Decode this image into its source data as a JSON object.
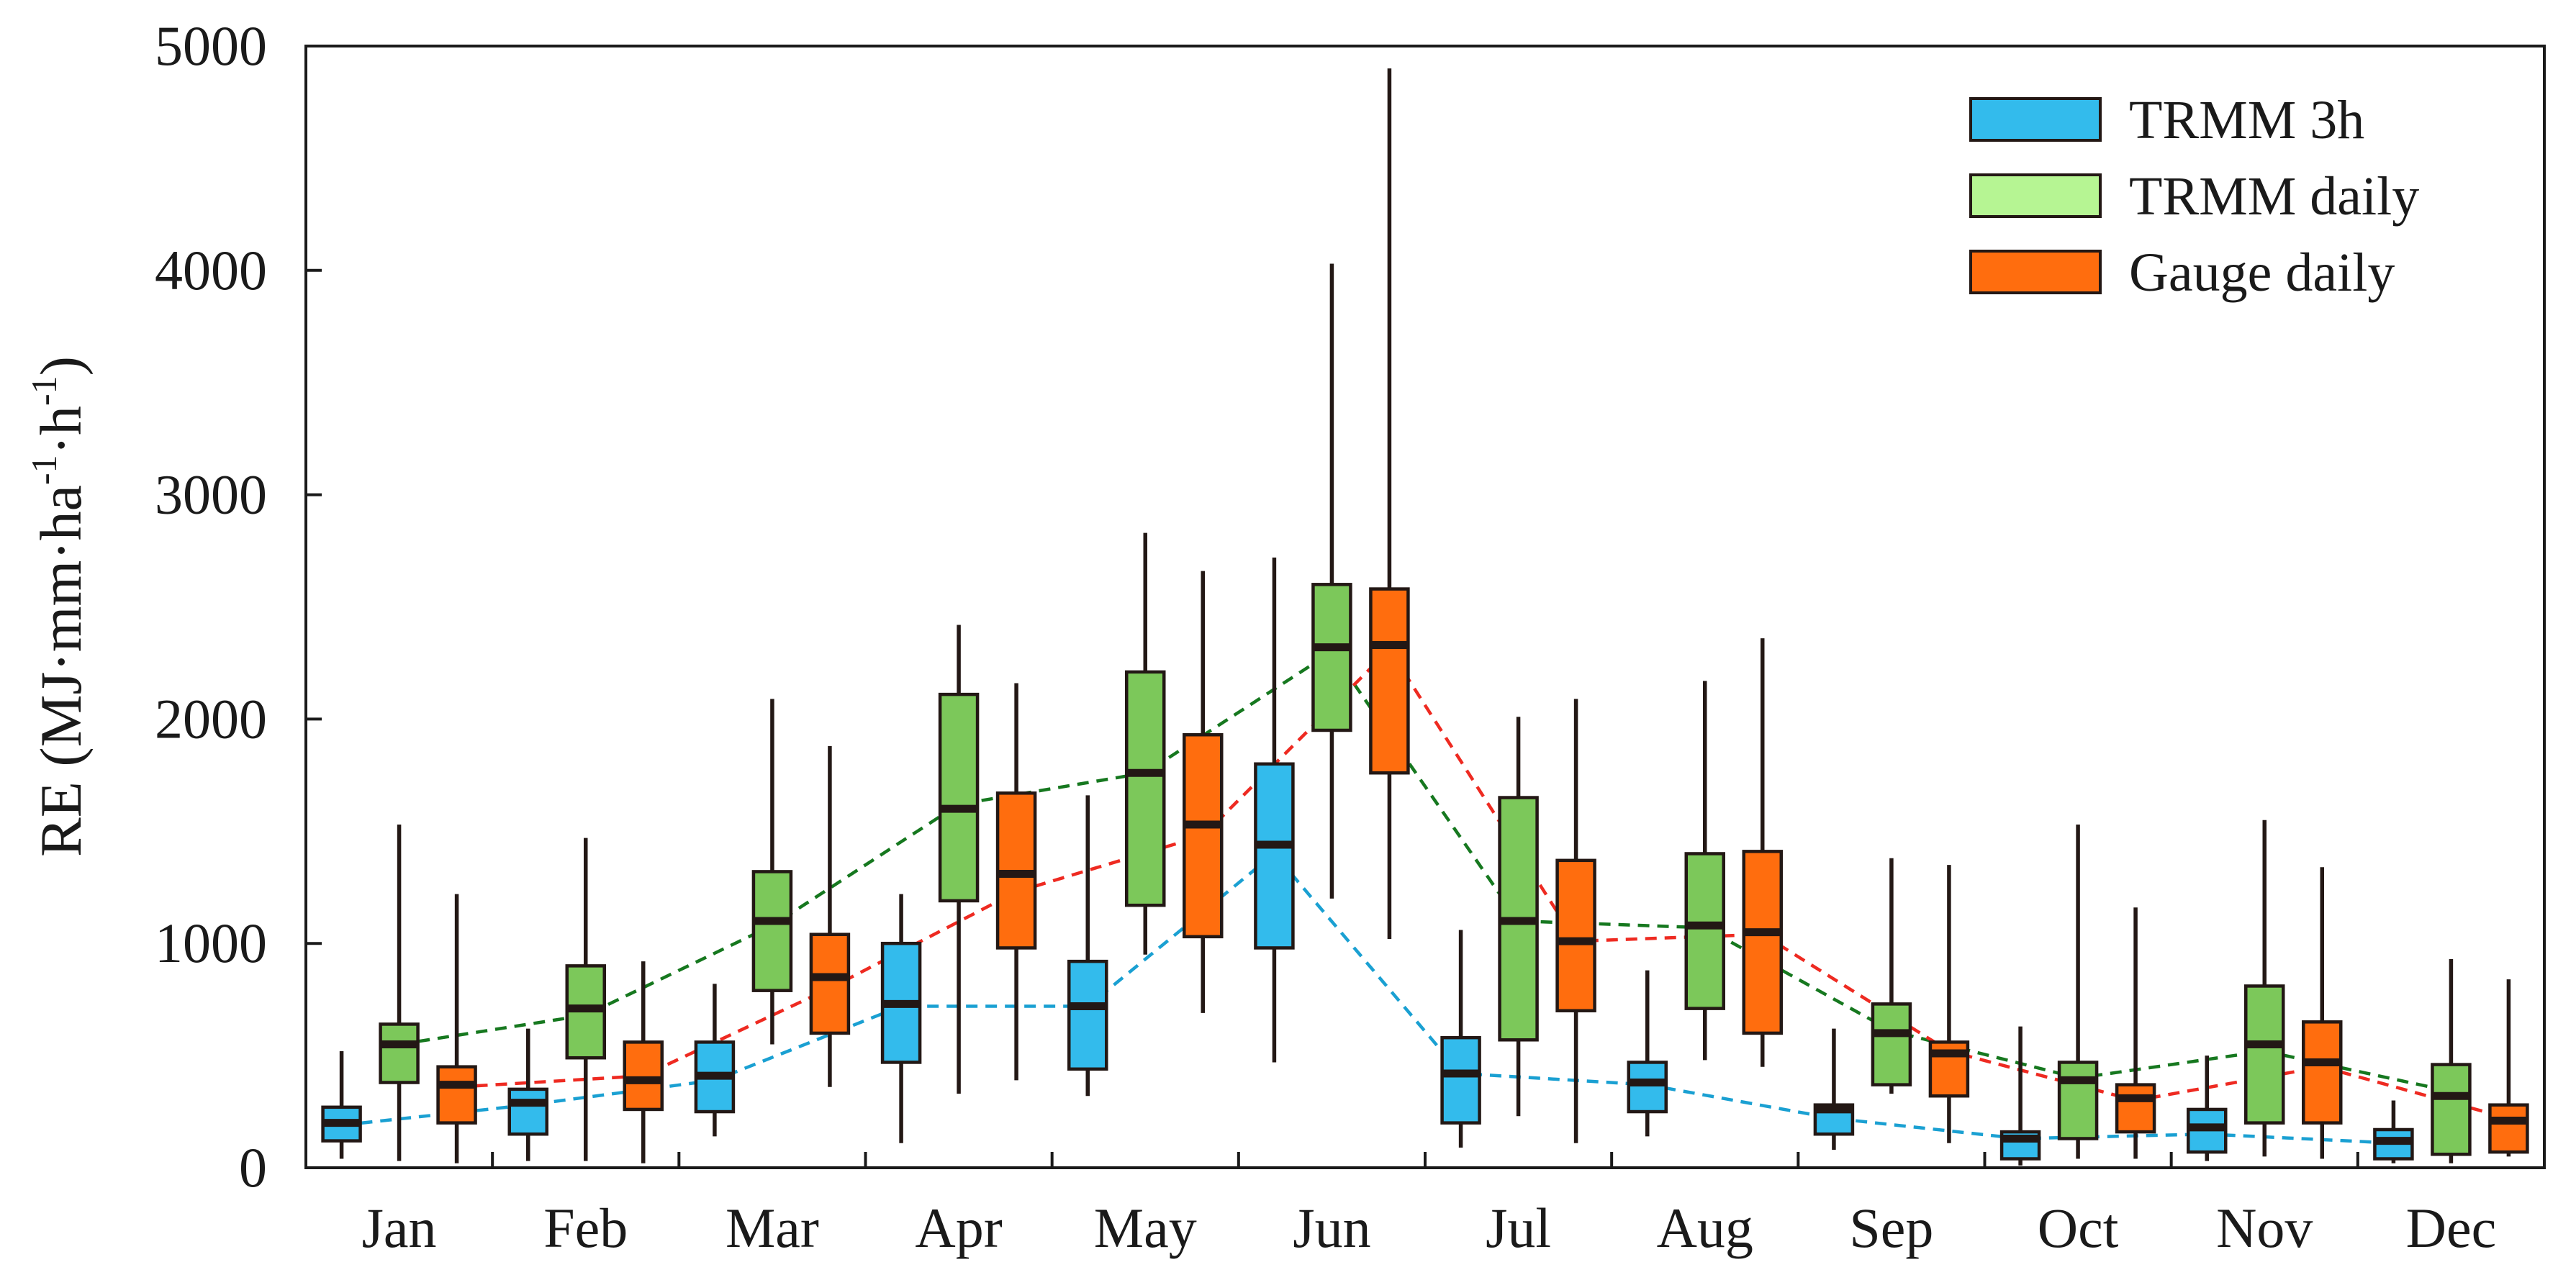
{
  "chart_data": {
    "type": "box",
    "title": "",
    "xlabel": "",
    "ylabel": "RE (MJ·mm·ha",
    "ylabel_sup1": "-1",
    "ylabel_mid": "·h",
    "ylabel_sup2": "-1",
    "ylabel_end": ")",
    "ylim": [
      0,
      5000
    ],
    "yticks": [
      0,
      1000,
      2000,
      3000,
      4000,
      5000
    ],
    "yticklabels": [
      "0",
      "1000",
      "2000",
      "3000",
      "4000",
      "5000"
    ],
    "categories": [
      "Jan",
      "Feb",
      "Mar",
      "Apr",
      "May",
      "Jun",
      "Jul",
      "Aug",
      "Sep",
      "Oct",
      "Nov",
      "Dec"
    ],
    "legend_position": "top-right",
    "series": [
      {
        "name": "TRMM 3h",
        "color": "#33bbec",
        "mean_line_color": "#1aa0d2",
        "boxes": [
          {
            "min": 40,
            "q1": 120,
            "median": 200,
            "q3": 270,
            "max": 520,
            "mean": 190
          },
          {
            "min": 30,
            "q1": 150,
            "median": 290,
            "q3": 350,
            "max": 620,
            "mean": 280
          },
          {
            "min": 140,
            "q1": 250,
            "median": 410,
            "q3": 560,
            "max": 820,
            "mean": 390
          },
          {
            "min": 110,
            "q1": 470,
            "median": 730,
            "q3": 1000,
            "max": 1220,
            "mean": 720
          },
          {
            "min": 320,
            "q1": 440,
            "median": 720,
            "q3": 920,
            "max": 1660,
            "mean": 720
          },
          {
            "min": 470,
            "q1": 980,
            "median": 1440,
            "q3": 1800,
            "max": 2720,
            "mean": 1400
          },
          {
            "min": 90,
            "q1": 200,
            "median": 420,
            "q3": 580,
            "max": 1060,
            "mean": 420
          },
          {
            "min": 140,
            "q1": 250,
            "median": 380,
            "q3": 470,
            "max": 880,
            "mean": 370
          },
          {
            "min": 80,
            "q1": 150,
            "median": 260,
            "q3": 280,
            "max": 620,
            "mean": 220
          },
          {
            "min": 10,
            "q1": 40,
            "median": 130,
            "q3": 160,
            "max": 630,
            "mean": 130
          },
          {
            "min": 30,
            "q1": 70,
            "median": 180,
            "q3": 260,
            "max": 500,
            "mean": 150
          },
          {
            "min": 20,
            "q1": 40,
            "median": 120,
            "q3": 170,
            "max": 300,
            "mean": 110
          }
        ]
      },
      {
        "name": "TRMM daily",
        "color": "#7cc85a",
        "legend_color": "#b6f593",
        "mean_line_color": "#16781f",
        "boxes": [
          {
            "min": 30,
            "q1": 380,
            "median": 550,
            "q3": 640,
            "max": 1530,
            "mean": 550
          },
          {
            "min": 30,
            "q1": 490,
            "median": 710,
            "q3": 900,
            "max": 1470,
            "mean": 680
          },
          {
            "min": 550,
            "q1": 790,
            "median": 1100,
            "q3": 1320,
            "max": 2090,
            "mean": 1080
          },
          {
            "min": 330,
            "q1": 1190,
            "median": 1600,
            "q3": 2110,
            "max": 2420,
            "mean": 1620
          },
          {
            "min": 950,
            "q1": 1170,
            "median": 1760,
            "q3": 2210,
            "max": 2830,
            "mean": 1760
          },
          {
            "min": 1200,
            "q1": 1950,
            "median": 2320,
            "q3": 2600,
            "max": 4030,
            "mean": 2300
          },
          {
            "min": 230,
            "q1": 570,
            "median": 1100,
            "q3": 1650,
            "max": 2010,
            "mean": 1100
          },
          {
            "min": 480,
            "q1": 710,
            "median": 1080,
            "q3": 1400,
            "max": 2170,
            "mean": 1070
          },
          {
            "min": 330,
            "q1": 370,
            "median": 600,
            "q3": 730,
            "max": 1380,
            "mean": 610
          },
          {
            "min": 40,
            "q1": 130,
            "median": 390,
            "q3": 470,
            "max": 1530,
            "mean": 400
          },
          {
            "min": 50,
            "q1": 200,
            "median": 550,
            "q3": 810,
            "max": 1550,
            "mean": 520
          },
          {
            "min": 20,
            "q1": 60,
            "median": 320,
            "q3": 460,
            "max": 930,
            "mean": 340
          }
        ]
      },
      {
        "name": "Gauge daily",
        "color": "#ff6d0e",
        "mean_line_color": "#ee2a21",
        "boxes": [
          {
            "min": 20,
            "q1": 200,
            "median": 370,
            "q3": 450,
            "max": 1220,
            "mean": 360
          },
          {
            "min": 20,
            "q1": 260,
            "median": 390,
            "q3": 560,
            "max": 920,
            "mean": 410
          },
          {
            "min": 360,
            "q1": 600,
            "median": 850,
            "q3": 1040,
            "max": 1880,
            "mean": 800
          },
          {
            "min": 390,
            "q1": 980,
            "median": 1310,
            "q3": 1670,
            "max": 2160,
            "mean": 1230
          },
          {
            "min": 690,
            "q1": 1030,
            "median": 1530,
            "q3": 1930,
            "max": 2660,
            "mean": 1480
          },
          {
            "min": 1020,
            "q1": 1760,
            "median": 2330,
            "q3": 2580,
            "max": 4900,
            "mean": 2310
          },
          {
            "min": 110,
            "q1": 700,
            "median": 1010,
            "q3": 1370,
            "max": 2090,
            "mean": 1010
          },
          {
            "min": 450,
            "q1": 600,
            "median": 1050,
            "q3": 1410,
            "max": 2360,
            "mean": 1040
          },
          {
            "min": 110,
            "q1": 320,
            "median": 510,
            "q3": 560,
            "max": 1350,
            "mean": 520
          },
          {
            "min": 40,
            "q1": 160,
            "median": 310,
            "q3": 370,
            "max": 1160,
            "mean": 300
          },
          {
            "min": 40,
            "q1": 200,
            "median": 470,
            "q3": 650,
            "max": 1340,
            "mean": 450
          },
          {
            "min": 50,
            "q1": 70,
            "median": 210,
            "q3": 280,
            "max": 840,
            "mean": 220
          }
        ]
      }
    ]
  }
}
